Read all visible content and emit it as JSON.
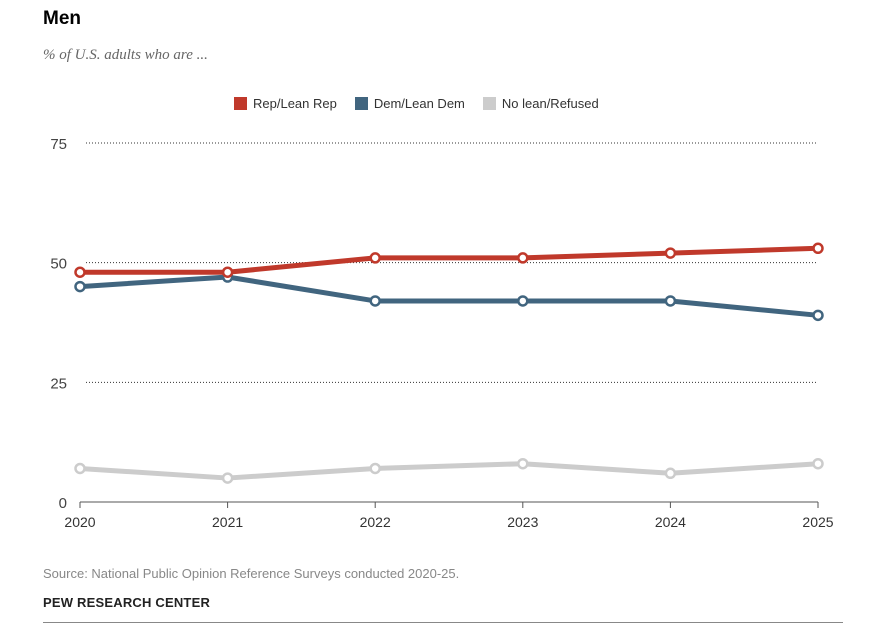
{
  "title": "Men",
  "subtitle": "% of U.S. adults who are ...",
  "source": "Source: National Public Opinion Reference Surveys conducted 2020-25.",
  "credit": "PEW RESEARCH CENTER",
  "chart_data": {
    "type": "line",
    "title": "Men",
    "x": [
      "2020",
      "2021",
      "2022",
      "2023",
      "2024",
      "2025"
    ],
    "y_ticks": [
      "0",
      "25",
      "50",
      "75"
    ],
    "ylim": [
      0,
      75
    ],
    "grid": true,
    "legend_placement": "top",
    "series": [
      {
        "name": "Rep/Lean Rep",
        "color": "#c0392b",
        "values": [
          48,
          48,
          51,
          51,
          52,
          53
        ]
      },
      {
        "name": "Dem/Lean Dem",
        "color": "#41657f",
        "values": [
          45,
          47,
          42,
          42,
          42,
          39
        ]
      },
      {
        "name": "No lean/Refused",
        "color": "#cccccc",
        "values": [
          7,
          5,
          7,
          8,
          6,
          8
        ]
      }
    ]
  }
}
